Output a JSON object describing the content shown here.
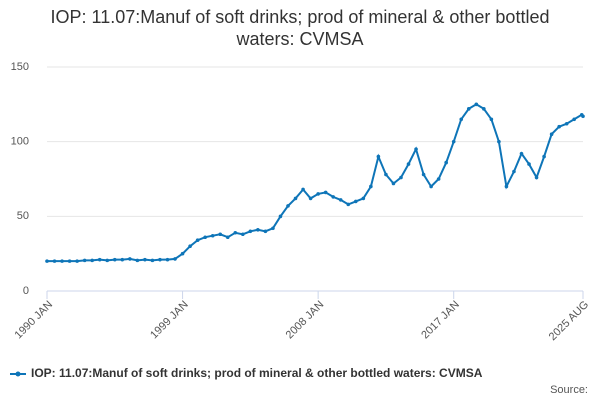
{
  "chart_data": {
    "type": "line",
    "title": "IOP: 11.07:Manuf of soft drinks; prod of mineral & other bottled waters: CVMSA",
    "source": "Source:",
    "categories": [
      "1990 JAN",
      "1990 JUL",
      "1991 JAN",
      "1991 JUL",
      "1992 JAN",
      "1992 JUL",
      "1993 JAN",
      "1993 JUL",
      "1994 JAN",
      "1994 JUL",
      "1995 JAN",
      "1995 JUL",
      "1996 JAN",
      "1996 JUL",
      "1997 JAN",
      "1997 JUL",
      "1998 JAN",
      "1998 JUL",
      "1999 JAN",
      "1999 JUL",
      "2000 JAN",
      "2000 JUL",
      "2001 JAN",
      "2001 JUL",
      "2002 JAN",
      "2002 JUL",
      "2003 JAN",
      "2003 JUL",
      "2004 JAN",
      "2004 JUL",
      "2005 JAN",
      "2005 JUL",
      "2006 JAN",
      "2006 JUL",
      "2007 JAN",
      "2007 JUL",
      "2008 JAN",
      "2008 JUL",
      "2009 JAN",
      "2009 JUL",
      "2010 JAN",
      "2010 JUL",
      "2011 JAN",
      "2011 JUL",
      "2012 JAN",
      "2012 JUL",
      "2013 JAN",
      "2013 JUL",
      "2014 JAN",
      "2014 JUL",
      "2015 JAN",
      "2015 JUL",
      "2016 JAN",
      "2016 JUL",
      "2017 JAN",
      "2017 JUL",
      "2018 JAN",
      "2018 JUL",
      "2019 JAN",
      "2019 JUL",
      "2020 JAN",
      "2020 JUL",
      "2021 JAN",
      "2021 JUL",
      "2022 JAN",
      "2022 JUL",
      "2023 JAN",
      "2023 JUL",
      "2024 JAN",
      "2024 JUL",
      "2025 JAN",
      "2025 JUL",
      "2025 AUG"
    ],
    "series": [
      {
        "name": "IOP: 11.07:Manuf of soft drinks; prod of mineral & other bottled waters: CVMSA",
        "color": "#0e75b8",
        "values": [
          20,
          20,
          20,
          20,
          20,
          20.5,
          20.5,
          21,
          20.5,
          21,
          21,
          21.5,
          20.5,
          21,
          20.5,
          21,
          21,
          21.5,
          25,
          30,
          34,
          36,
          37,
          38,
          36,
          39,
          38,
          40,
          41,
          40,
          42,
          50,
          57,
          62,
          68,
          62,
          65,
          66,
          63,
          61,
          58,
          60,
          62,
          70,
          90,
          78,
          72,
          76,
          85,
          95,
          78,
          70,
          75,
          86,
          100,
          115,
          122,
          125,
          122,
          115,
          100,
          70,
          80,
          92,
          85,
          76,
          90,
          105,
          110,
          112,
          115,
          118,
          117
        ]
      }
    ],
    "xticks": [
      "1990 JAN",
      "1999 JAN",
      "2008 JAN",
      "2017 JAN",
      "2025 AUG"
    ],
    "ylim": [
      0,
      150
    ],
    "yticks": [
      0,
      50,
      100,
      150
    ],
    "grid": true,
    "legend": "bottom"
  }
}
